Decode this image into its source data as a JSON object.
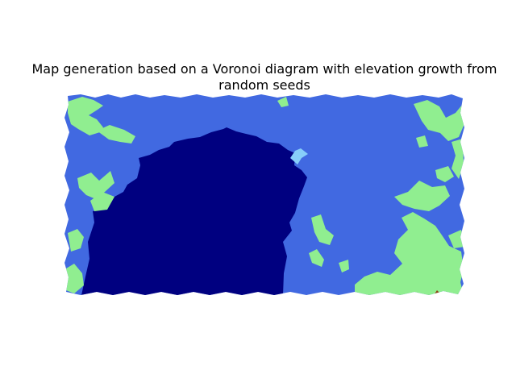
{
  "title": "Map generation based on a Voronoi diagram with elevation growth from\nrandom seeds",
  "legend": [],
  "colors": {
    "deep_water": "#000080",
    "shallow_water": "#4169e1",
    "shore_water": "#87cefa",
    "lowland": "#90ee90",
    "highland": "#8b4513",
    "background": "#ffffff"
  },
  "map": {
    "type": "voronoi-elevation",
    "zones": [
      "deep_water",
      "shallow_water",
      "shore_water",
      "lowland",
      "highland"
    ]
  }
}
